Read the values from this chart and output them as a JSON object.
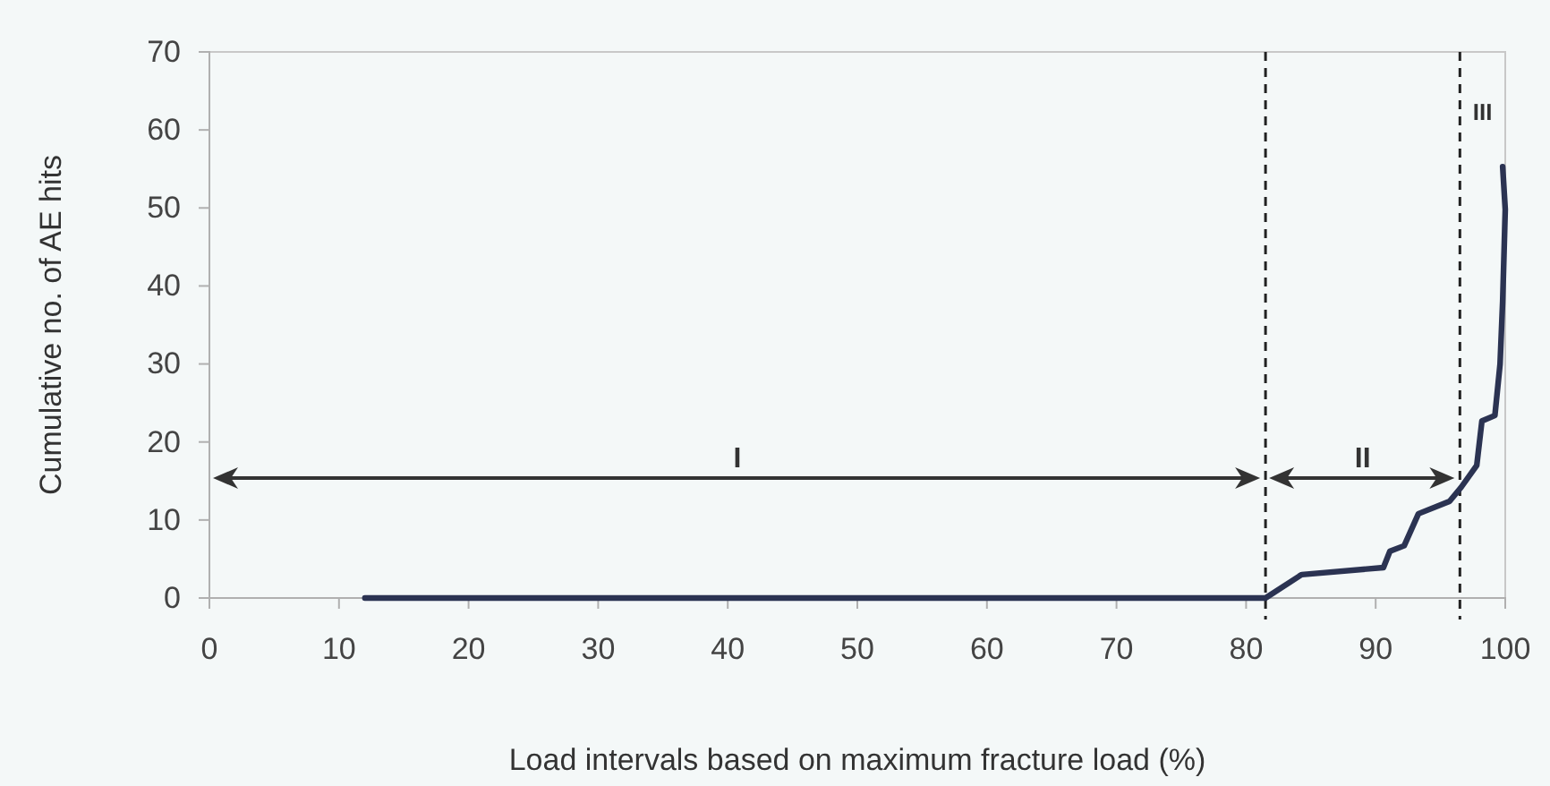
{
  "chart_data": {
    "type": "line",
    "xlabel": "Load intervals based on maximum fracture load (%)",
    "ylabel": "Cumulative no. of AE hits",
    "xlim": [
      0,
      100
    ],
    "ylim": [
      0,
      70
    ],
    "xticks": [
      0,
      10,
      20,
      30,
      40,
      50,
      60,
      70,
      80,
      90,
      100
    ],
    "yticks": [
      0,
      10,
      20,
      30,
      40,
      50,
      60,
      70
    ],
    "grid": false,
    "marker": "none",
    "line_style": "solid",
    "series": [
      {
        "color": "#2b3352",
        "x": [
          12,
          81.5,
          84.1,
          84.3,
          90.6,
          91.1,
          92.2,
          93.3,
          95.7,
          96.6,
          97.8,
          98.2,
          99.2,
          99.6,
          99.8,
          100,
          99.8
        ],
        "values": [
          0,
          0,
          2.8,
          3,
          3.9,
          6,
          6.7,
          10.8,
          12.4,
          14.2,
          17,
          22.7,
          23.4,
          30,
          38,
          49.8,
          55.3
        ]
      }
    ],
    "ref_lines": [
      {
        "axis": "x",
        "value": 81.5,
        "line_style": "dashed",
        "color": "#222222"
      },
      {
        "axis": "x",
        "value": 96.5,
        "line_style": "dashed",
        "color": "#222222"
      }
    ],
    "annotations": [
      "I",
      "II",
      "III"
    ]
  }
}
